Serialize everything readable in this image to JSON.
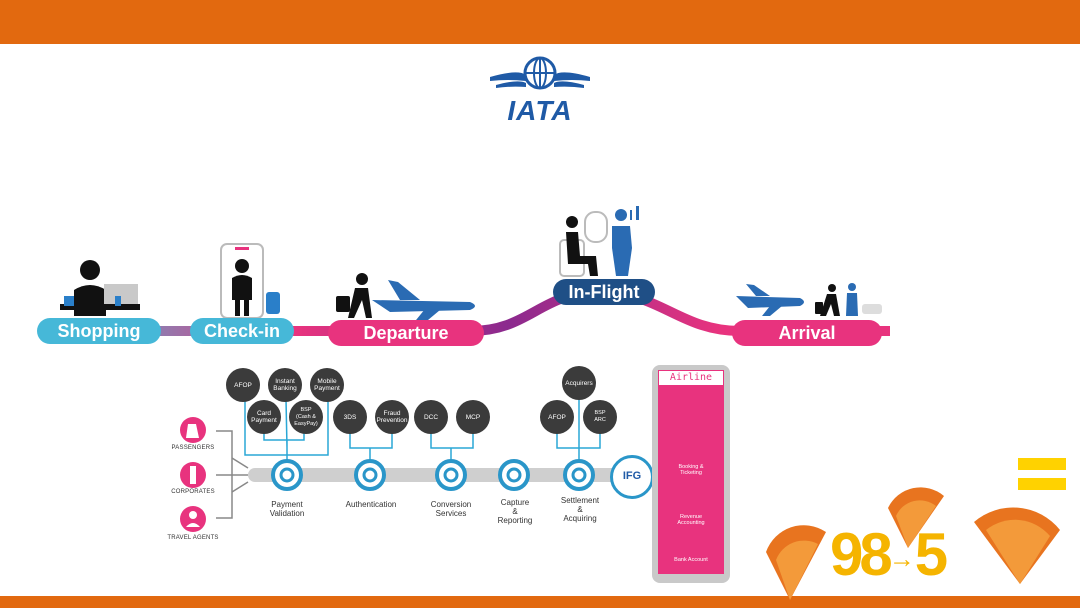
{
  "brand": {
    "name": "IATA"
  },
  "journey": {
    "stages": [
      "Shopping",
      "Check-in",
      "Departure",
      "In-Flight",
      "Arrival"
    ]
  },
  "payment_chain": {
    "customers": [
      "PASSENGERS",
      "CORPORATES",
      "TRAVEL AGENTS"
    ],
    "nodes": [
      {
        "label": "Payment\nValidation",
        "options": [
          "AFOP",
          "Instant\nBanking",
          "Mobile\nPayment",
          "Card\nPayment",
          "BSP\n(Cash &\nEasyPay)"
        ]
      },
      {
        "label": "Authentication",
        "options": [
          "3DS",
          "Fraud\nPrevention"
        ]
      },
      {
        "label": "Conversion\nServices",
        "options": [
          "DCC",
          "MCP"
        ]
      },
      {
        "label": "Capture\n&\nReporting",
        "options": []
      },
      {
        "label": "Settlement\n&\nAcquiring",
        "options": [
          "Acquirers",
          "AFOP",
          "BSP\nARC"
        ]
      }
    ],
    "hub": "IFG"
  },
  "airline": {
    "title": "Airline",
    "items": [
      "Booking &\nTicketing",
      "Revenue\nAccounting",
      "Bank Account"
    ]
  },
  "corner": {
    "from_digits": "98",
    "to_digit": "5"
  },
  "colors": {
    "orange": "#e2690f",
    "pink": "#e8337e",
    "cyan": "#46b8d8",
    "navy": "#1f4f86",
    "purple": "#8b2a8e",
    "yellow": "#f5b400"
  }
}
